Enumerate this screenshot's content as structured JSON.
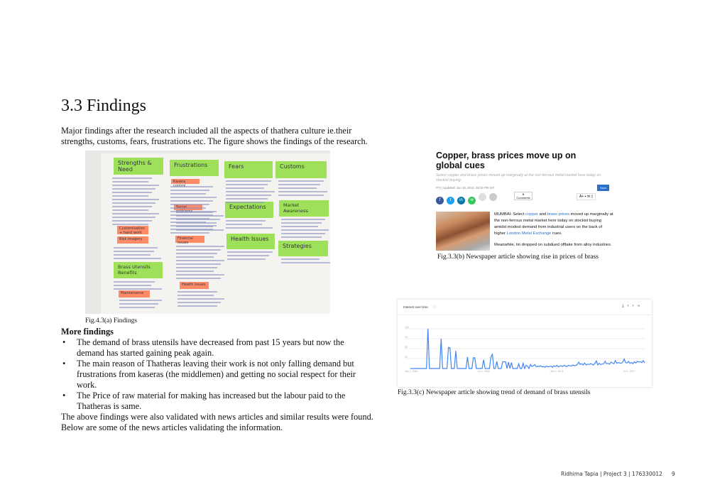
{
  "title": "3.3 Findings",
  "intro": "Major findings after the research included all the aspects of thathera culture ie.their strengths, customs, fears, frustrations etc. The figure shows the findings of the research.",
  "photo": {
    "notes_green": [
      "Strengths & Need",
      "Frustrations",
      "Fears",
      "Customs",
      "Expectations",
      "Market Awareness",
      "Health Issues",
      "Strategies",
      "Brass Utensils Benefits"
    ],
    "notes_orange": [
      "Kasera control",
      "Social problems",
      "Customisation + hand work",
      "Risk Imagery",
      "Financial issues",
      "Health issues",
      "Maintenance"
    ]
  },
  "fig_a_caption": "Fig.4.3(a)  Findings",
  "more_findings": {
    "heading": "More findings",
    "bullets": [
      "The demand of brass utensils have decreased from past 15 years but now the demand has started gaining peak again.",
      "The main reason of Thatheras leaving their work is not only falling demand but frustrations from kaseras (the middlemen) and getting no social respect for their work.",
      "The Price of raw material for making has increased but the labour paid to the Thatheras is same."
    ],
    "closing": "The above findings were also validated with news articles and similar results were found. Below are some of the news articles validating the information."
  },
  "article": {
    "headline": "Copper, brass prices move up on global cues",
    "standfirst": "Select copper and brass prices moved up marginally at the non-ferrous metal market here today on stockist buying.",
    "byline": "PTI | Updated: Jun 18, 2013, 05:25 PM IST",
    "comments_count": "0",
    "comments_label": "Comments",
    "save_label": "Save",
    "font_size_label": "A+",
    "body1_parts": [
      "MUMBAI: Select ",
      "copper",
      " and ",
      "brass prices",
      " moved up marginally at the non-ferrous metal market here today on stockist buying amidst modest demand from industrial users on the back of higher ",
      "London Metal Exchange",
      " cues."
    ],
    "body2": "Meanwhile, tin dropped on subdued offtake from alloy industries.",
    "link_color": "#2a6fc9"
  },
  "fig_b_caption": "Fig.3.3(b)  Newspaper article showing rise in prices of brass",
  "trends": {
    "title": "Interest over time",
    "y_ticks": [
      "100",
      "75",
      "50",
      "25"
    ],
    "x_ticks": [
      "Jan 1, 2004",
      "Jul 1, 2008",
      "Jan 1, 2013",
      "Jul 1, 2017"
    ],
    "line_color": "#4285f4",
    "values": [
      0,
      0,
      0,
      0,
      0,
      0,
      0,
      0,
      0,
      0,
      0,
      0,
      100,
      0,
      0,
      0,
      0,
      0,
      0,
      0,
      0,
      75,
      0,
      0,
      0,
      0,
      53,
      52,
      0,
      0,
      0,
      44,
      0,
      0,
      0,
      0,
      0,
      0,
      0,
      29,
      0,
      0,
      0,
      27,
      27,
      0,
      0,
      0,
      0,
      0,
      22,
      0,
      0,
      0,
      0,
      28,
      37,
      0,
      0,
      18,
      0,
      0,
      0,
      17,
      17,
      17,
      0,
      16,
      0,
      15,
      0,
      0,
      0,
      0,
      12,
      0,
      0,
      13,
      0,
      8,
      6,
      0,
      10,
      5,
      7,
      10,
      4,
      6,
      5,
      7,
      4,
      5,
      3,
      6,
      4,
      5,
      6,
      3,
      7,
      5,
      8,
      4,
      6,
      7,
      5,
      8,
      6,
      5,
      8,
      7,
      6,
      9,
      7,
      8,
      10,
      16,
      10,
      12,
      9,
      14,
      9,
      11,
      10,
      12,
      11,
      9,
      13,
      19,
      9,
      13,
      10,
      11,
      12,
      18,
      12,
      13,
      11,
      16,
      14,
      12,
      20,
      13,
      15,
      14,
      13,
      16,
      24,
      15,
      14,
      18,
      13,
      15,
      12,
      17,
      14,
      18,
      16,
      17,
      15,
      20,
      14
    ],
    "ylim": [
      0,
      100
    ]
  },
  "fig_c_caption": "Fig.3.3(c)  Newspaper article showing trend of demand of brass utensils",
  "footer": {
    "text": "Ridhima Tapia | Project 3 | 176330012",
    "page": "9"
  }
}
